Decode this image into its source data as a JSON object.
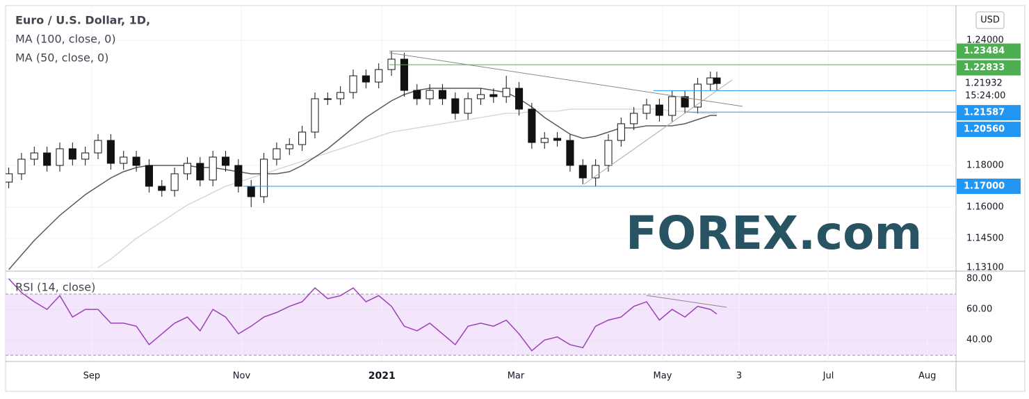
{
  "chart_data": [
    {
      "type": "candlestick",
      "title": "Euro / U.S. Dollar, 1D,",
      "currency": "USD",
      "watermark": "FOREX.com",
      "x": [
        0,
        4,
        8,
        12,
        16,
        20,
        24,
        28,
        32,
        36,
        40,
        44,
        48,
        52,
        56,
        60,
        64,
        68,
        72,
        76,
        80,
        84,
        88,
        92,
        96,
        100,
        104,
        108,
        112,
        116,
        120,
        124,
        128,
        132,
        136,
        140,
        144,
        148,
        152,
        156,
        160,
        164,
        168,
        172,
        176,
        180,
        184,
        188,
        192,
        196,
        200,
        204,
        208,
        212,
        216,
        220,
        222
      ],
      "open": [
        1.172,
        1.176,
        1.183,
        1.186,
        1.18,
        1.188,
        1.183,
        1.186,
        1.192,
        1.181,
        1.184,
        1.18,
        1.17,
        1.168,
        1.176,
        1.181,
        1.173,
        1.184,
        1.18,
        1.17,
        1.165,
        1.183,
        1.188,
        1.19,
        1.196,
        1.212,
        1.212,
        1.215,
        1.223,
        1.22,
        1.226,
        1.231,
        1.216,
        1.212,
        1.216,
        1.212,
        1.205,
        1.212,
        1.214,
        1.213,
        1.217,
        1.207,
        1.191,
        1.193,
        1.192,
        1.18,
        1.174,
        1.18,
        1.192,
        1.2,
        1.205,
        1.209,
        1.204,
        1.213,
        1.208,
        1.219,
        1.222
      ],
      "high": [
        1.179,
        1.186,
        1.189,
        1.189,
        1.191,
        1.191,
        1.189,
        1.195,
        1.195,
        1.187,
        1.187,
        1.183,
        1.173,
        1.179,
        1.184,
        1.184,
        1.187,
        1.187,
        1.183,
        1.173,
        1.186,
        1.191,
        1.193,
        1.199,
        1.215,
        1.215,
        1.218,
        1.226,
        1.226,
        1.229,
        1.235,
        1.234,
        1.219,
        1.219,
        1.219,
        1.215,
        1.215,
        1.217,
        1.217,
        1.223,
        1.22,
        1.21,
        1.196,
        1.196,
        1.195,
        1.183,
        1.183,
        1.195,
        1.203,
        1.208,
        1.212,
        1.212,
        1.216,
        1.216,
        1.222,
        1.225,
        1.225
      ],
      "low": [
        1.169,
        1.173,
        1.18,
        1.177,
        1.177,
        1.18,
        1.18,
        1.183,
        1.178,
        1.178,
        1.177,
        1.167,
        1.165,
        1.165,
        1.173,
        1.17,
        1.17,
        1.177,
        1.167,
        1.16,
        1.162,
        1.18,
        1.185,
        1.187,
        1.193,
        1.209,
        1.209,
        1.212,
        1.217,
        1.217,
        1.223,
        1.213,
        1.209,
        1.209,
        1.209,
        1.202,
        1.202,
        1.209,
        1.21,
        1.21,
        1.204,
        1.188,
        1.188,
        1.189,
        1.177,
        1.171,
        1.17,
        1.177,
        1.189,
        1.197,
        1.202,
        1.201,
        1.201,
        1.205,
        1.205,
        1.216,
        1.216
      ],
      "close": [
        1.176,
        1.183,
        1.186,
        1.18,
        1.188,
        1.183,
        1.186,
        1.192,
        1.181,
        1.184,
        1.18,
        1.17,
        1.168,
        1.176,
        1.181,
        1.173,
        1.184,
        1.18,
        1.17,
        1.165,
        1.183,
        1.188,
        1.19,
        1.196,
        1.212,
        1.212,
        1.215,
        1.223,
        1.22,
        1.226,
        1.231,
        1.216,
        1.212,
        1.216,
        1.212,
        1.205,
        1.212,
        1.214,
        1.213,
        1.217,
        1.207,
        1.191,
        1.193,
        1.192,
        1.18,
        1.174,
        1.18,
        1.192,
        1.2,
        1.205,
        1.209,
        1.204,
        1.213,
        1.208,
        1.219,
        1.222,
        1.2193
      ],
      "series": [
        {
          "name": "MA (100, close, 0)",
          "color": "#cfd3d8",
          "values": [
            null,
            null,
            null,
            null,
            null,
            null,
            null,
            1.131,
            1.135,
            1.14,
            1.145,
            1.149,
            1.153,
            1.157,
            1.161,
            1.164,
            1.167,
            1.17,
            1.172,
            1.174,
            1.176,
            1.178,
            1.18,
            1.182,
            1.184,
            1.186,
            1.188,
            1.19,
            1.192,
            1.194,
            1.196,
            1.197,
            1.198,
            1.199,
            1.2,
            1.201,
            1.202,
            1.203,
            1.204,
            1.205,
            1.205,
            1.206,
            1.206,
            1.206,
            1.207,
            1.207,
            1.207,
            1.207,
            1.207,
            1.207,
            1.207,
            1.207,
            1.206,
            1.206,
            1.205,
            1.205,
            1.205
          ]
        },
        {
          "name": "MA (50, close, 0)",
          "color": "#555a60",
          "values": [
            1.13,
            1.137,
            1.144,
            1.15,
            1.156,
            1.161,
            1.166,
            1.17,
            1.174,
            1.177,
            1.179,
            1.18,
            1.18,
            1.18,
            1.18,
            1.179,
            1.179,
            1.178,
            1.177,
            1.176,
            1.176,
            1.176,
            1.177,
            1.18,
            1.184,
            1.188,
            1.193,
            1.198,
            1.203,
            1.207,
            1.211,
            1.214,
            1.216,
            1.217,
            1.217,
            1.217,
            1.217,
            1.217,
            1.216,
            1.215,
            1.212,
            1.208,
            1.203,
            1.199,
            1.195,
            1.193,
            1.194,
            1.196,
            1.198,
            1.198,
            1.199,
            1.199,
            1.199,
            1.2,
            1.202,
            1.204,
            1.204
          ]
        }
      ],
      "xlim": [
        -1,
        297
      ],
      "ylim": [
        1.1293,
        1.2567
      ],
      "yticks": [
        {
          "value": 1.24,
          "label": "1.24000"
        },
        {
          "value": 1.18,
          "label": "1.18000"
        },
        {
          "value": 1.16,
          "label": "1.16000"
        },
        {
          "value": 1.145,
          "label": "1.14500"
        },
        {
          "value": 1.131,
          "label": "1.13100"
        }
      ],
      "levels": [
        {
          "value": 1.23484,
          "label": "1.23484",
          "color": "#4caf50"
        },
        {
          "value": 1.22833,
          "label": "1.22833",
          "color": "#4caf50"
        },
        {
          "value": 1.21587,
          "label": "1.21587",
          "color": "#2196f3"
        },
        {
          "value": 1.2056,
          "label": "1.20560",
          "color": "#2196f3"
        },
        {
          "value": 1.17,
          "label": "1.17000",
          "color": "#2196f3"
        }
      ],
      "last": {
        "value": 1.21932,
        "label": "1.21932",
        "countdown": "15:24:00"
      }
    },
    {
      "type": "line",
      "title": "RSI (14, close)",
      "color": "#9b3fb5",
      "x": [
        0,
        4,
        8,
        12,
        16,
        20,
        24,
        28,
        32,
        36,
        40,
        44,
        48,
        52,
        56,
        60,
        64,
        68,
        72,
        76,
        80,
        84,
        88,
        92,
        96,
        100,
        104,
        108,
        112,
        116,
        120,
        124,
        128,
        132,
        136,
        140,
        144,
        148,
        152,
        156,
        160,
        164,
        168,
        172,
        176,
        180,
        184,
        188,
        192,
        196,
        200,
        204,
        208,
        212,
        216,
        220,
        222
      ],
      "values": [
        80,
        71,
        65,
        60,
        69,
        55,
        60,
        60,
        51,
        51,
        49,
        37,
        44,
        51,
        55,
        46,
        60,
        55,
        44,
        49,
        55,
        58,
        62,
        65,
        74,
        67,
        69,
        74,
        65,
        69,
        62,
        49,
        46,
        51,
        44,
        37,
        49,
        51,
        49,
        53,
        44,
        33,
        40,
        42,
        37,
        35,
        49,
        53,
        55,
        62,
        65,
        53,
        60,
        55,
        62,
        60,
        57
      ],
      "band": [
        30,
        70
      ],
      "band_color": "#f3e5fb",
      "xlim": [
        -1,
        297
      ],
      "ylim": [
        26,
        85
      ],
      "yticks": [
        {
          "value": 80,
          "label": "80.00"
        },
        {
          "value": 60,
          "label": "60.00"
        },
        {
          "value": 40,
          "label": "40.00"
        }
      ],
      "xticks": [
        {
          "value": 26,
          "label": "Sep"
        },
        {
          "value": 73,
          "label": "Nov"
        },
        {
          "value": 117,
          "label": "2021"
        },
        {
          "value": 159,
          "label": "Mar"
        },
        {
          "value": 205,
          "label": "May"
        },
        {
          "value": 229,
          "label": "3"
        },
        {
          "value": 257,
          "label": "Jul"
        },
        {
          "value": 288,
          "label": "Aug"
        }
      ]
    }
  ]
}
